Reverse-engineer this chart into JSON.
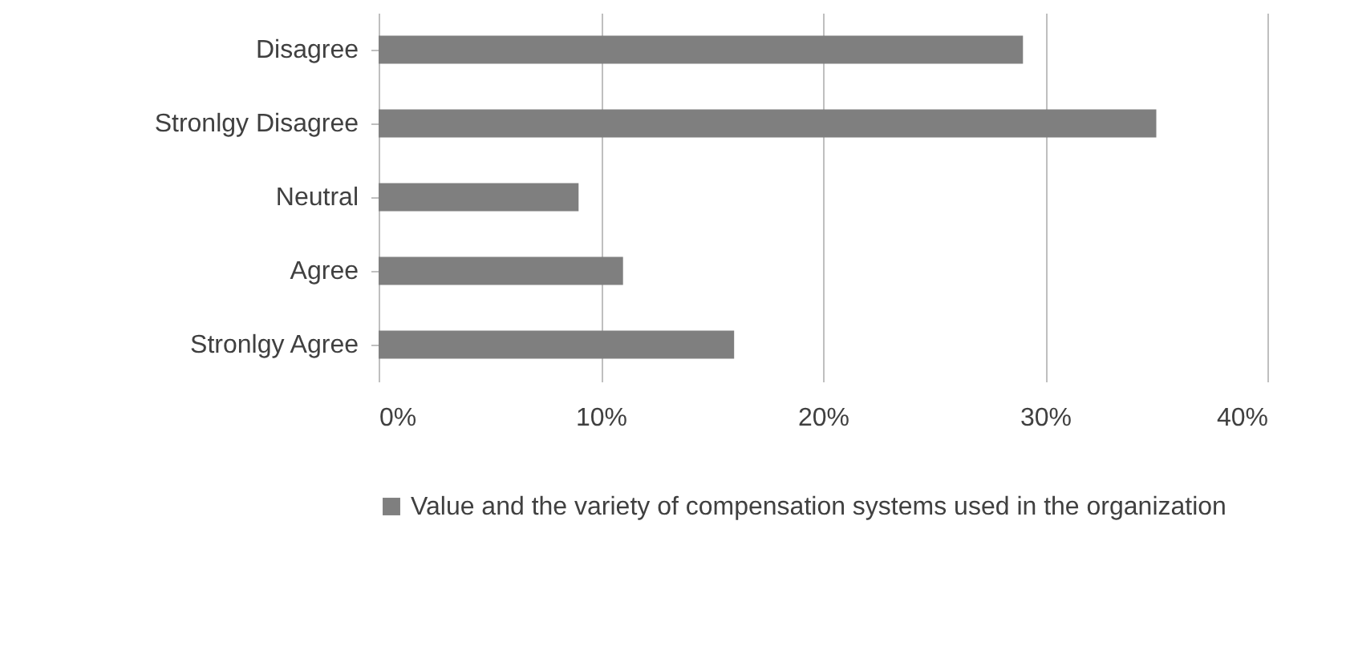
{
  "chart_data": {
    "type": "bar",
    "orientation": "horizontal",
    "categories": [
      "Disagree",
      "Stronlgy Disagree",
      "Neutral",
      "Agree",
      "Stronlgy Agree"
    ],
    "series": [
      {
        "name": "Value and the variety of compensation systems used in the organization",
        "color": "#7f7f7f",
        "values": [
          29,
          35,
          9,
          11,
          16
        ]
      }
    ],
    "xlim": [
      0,
      40
    ],
    "xticks": [
      {
        "value": 0,
        "label": "0%"
      },
      {
        "value": 10,
        "label": "10%"
      },
      {
        "value": 20,
        "label": "20%"
      },
      {
        "value": 30,
        "label": "30%"
      },
      {
        "value": 40,
        "label": "40%"
      }
    ],
    "grid": "x",
    "legend": "bottom"
  }
}
